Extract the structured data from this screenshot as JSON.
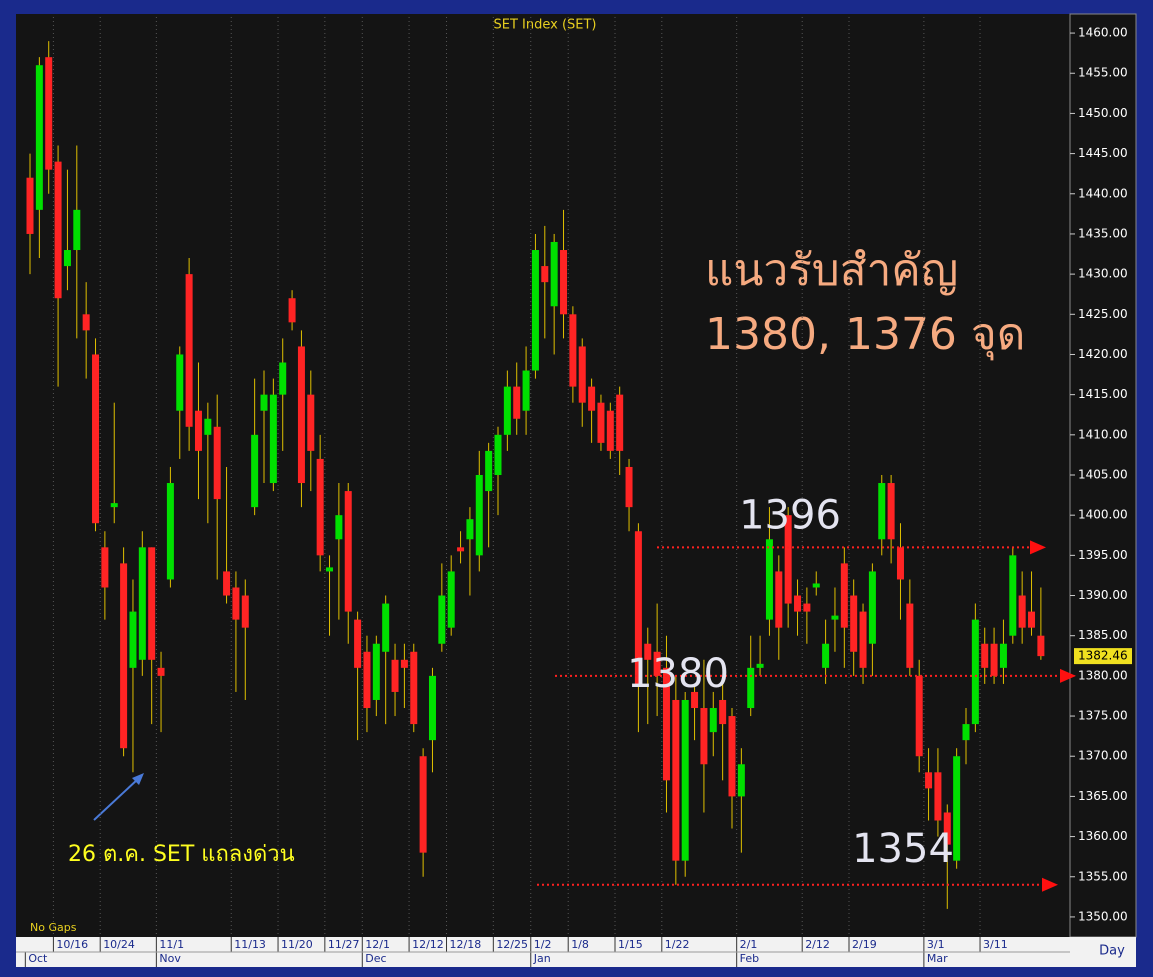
{
  "chart_data": {
    "type": "candlestick",
    "title": "SET Index (SET)",
    "open": [
      1442,
      1438,
      1457,
      1444,
      1431,
      1433,
      1425,
      1420,
      1396,
      1401,
      1394,
      1381,
      1382,
      1396,
      1381,
      1392,
      1413,
      1430,
      1413,
      1410,
      1411,
      1393,
      1391,
      1390,
      1401,
      1413,
      1404,
      1415,
      1427,
      1421,
      1415,
      1407,
      1393,
      1397,
      1403,
      1387,
      1383,
      1377,
      1383,
      1382,
      1382,
      1383,
      1370,
      1372,
      1384,
      1386,
      1396,
      1397,
      1395,
      1403,
      1405,
      1410,
      1416,
      1413,
      1418,
      1431,
      1426,
      1433,
      1425,
      1421,
      1416,
      1414,
      1413,
      1415,
      1406,
      1398,
      1384,
      1383,
      1381,
      1377,
      1357,
      1378,
      1376,
      1373,
      1377,
      1375,
      1365,
      1376,
      1381,
      1387,
      1393,
      1400,
      1390,
      1389,
      1391,
      1381,
      1387,
      1394,
      1390,
      1388,
      1384,
      1397,
      1404,
      1396,
      1389,
      1380,
      1368,
      1368,
      1363,
      1357,
      1372,
      1374,
      1384,
      1384,
      1381,
      1385,
      1390,
      1388,
      1385
    ],
    "high": [
      1445,
      1457,
      1459,
      1446,
      1443,
      1446,
      1429,
      1422,
      1398,
      1414,
      1396,
      1392,
      1398,
      1396,
      1383,
      1406,
      1421,
      1432,
      1419,
      1414,
      1415,
      1406,
      1393,
      1392,
      1417,
      1418,
      1417,
      1422,
      1428,
      1423,
      1418,
      1410,
      1395,
      1404,
      1404,
      1388,
      1385,
      1385,
      1390,
      1384,
      1384,
      1384,
      1371,
      1381,
      1394,
      1395,
      1398,
      1401,
      1408,
      1409,
      1411,
      1418,
      1419,
      1421,
      1435,
      1436,
      1435,
      1438,
      1426,
      1422,
      1417,
      1415,
      1414,
      1416,
      1407,
      1399,
      1386,
      1389,
      1385,
      1380,
      1378,
      1379,
      1382,
      1378,
      1379,
      1376,
      1371,
      1385,
      1385,
      1401,
      1395,
      1401,
      1392,
      1391,
      1393,
      1387,
      1391,
      1396,
      1392,
      1389,
      1394,
      1405,
      1405,
      1399,
      1392,
      1382,
      1371,
      1371,
      1364,
      1371,
      1376,
      1389,
      1386,
      1386,
      1387,
      1396,
      1393,
      1393,
      1391
    ],
    "low": [
      1430,
      1432,
      1440,
      1416,
      1428,
      1422,
      1417,
      1398,
      1387,
      1399,
      1370,
      1368,
      1380,
      1374,
      1373,
      1391,
      1407,
      1408,
      1402,
      1399,
      1392,
      1389,
      1378,
      1377,
      1400,
      1404,
      1403,
      1408,
      1423,
      1401,
      1403,
      1393,
      1385,
      1387,
      1384,
      1372,
      1373,
      1375,
      1374,
      1375,
      1376,
      1373,
      1355,
      1368,
      1383,
      1385,
      1394,
      1390,
      1393,
      1396,
      1400,
      1408,
      1410,
      1410,
      1417,
      1422,
      1420,
      1422,
      1414,
      1411,
      1409,
      1408,
      1407,
      1405,
      1398,
      1373,
      1374,
      1375,
      1363,
      1354,
      1355,
      1372,
      1363,
      1370,
      1367,
      1361,
      1358,
      1375,
      1380,
      1385,
      1382,
      1386,
      1385,
      1384,
      1390,
      1379,
      1383,
      1381,
      1380,
      1379,
      1380,
      1395,
      1394,
      1387,
      1380,
      1368,
      1362,
      1360,
      1351,
      1356,
      1369,
      1373,
      1379,
      1379,
      1379,
      1384,
      1384,
      1385,
      1382
    ],
    "close": [
      1435,
      1456,
      1443,
      1427,
      1433,
      1438,
      1423,
      1399,
      1391,
      1401.5,
      1371,
      1388,
      1396,
      1382,
      1380,
      1404,
      1420,
      1411,
      1408,
      1412,
      1402,
      1390,
      1387,
      1386,
      1410,
      1415,
      1415,
      1419,
      1424,
      1404,
      1408,
      1395,
      1393.5,
      1400,
      1388,
      1381,
      1376,
      1384,
      1389,
      1378,
      1381,
      1374,
      1358,
      1380,
      1390,
      1393,
      1395.5,
      1399.5,
      1405,
      1408,
      1410,
      1416,
      1412,
      1418,
      1433,
      1429,
      1434,
      1425,
      1416,
      1414,
      1413,
      1409,
      1408,
      1408,
      1401,
      1379,
      1382,
      1380,
      1367,
      1357,
      1377,
      1376,
      1369,
      1376,
      1374,
      1365,
      1369,
      1381,
      1381.5,
      1397,
      1386,
      1389,
      1388,
      1388,
      1391.5,
      1384,
      1387.5,
      1386,
      1383,
      1381,
      1393,
      1404,
      1397,
      1392,
      1381,
      1370,
      1366,
      1362,
      1359,
      1370,
      1374,
      1387,
      1381,
      1380,
      1384,
      1395,
      1386,
      1386,
      1382.46
    ],
    "categories": [
      null,
      null,
      null,
      "10/16",
      null,
      null,
      null,
      null,
      "10/24",
      null,
      null,
      null,
      null,
      null,
      "11/1",
      null,
      null,
      null,
      null,
      null,
      null,
      null,
      "11/13",
      null,
      null,
      null,
      null,
      "11/20",
      null,
      null,
      null,
      null,
      "11/27",
      null,
      null,
      null,
      "12/1",
      null,
      null,
      null,
      null,
      "12/12",
      null,
      null,
      null,
      "12/18",
      null,
      null,
      null,
      null,
      "12/25",
      null,
      null,
      null,
      "1/2",
      null,
      null,
      null,
      "1/8",
      null,
      null,
      null,
      null,
      "1/15",
      null,
      null,
      null,
      null,
      "1/22",
      null,
      null,
      null,
      null,
      null,
      null,
      null,
      "2/1",
      null,
      null,
      null,
      null,
      null,
      null,
      "2/12",
      null,
      null,
      null,
      null,
      "2/19",
      null,
      null,
      null,
      null,
      null,
      null,
      null,
      "3/1",
      null,
      null,
      null,
      null,
      null,
      "3/11",
      null,
      null,
      null,
      null,
      null,
      null
    ],
    "months": [
      "Oct",
      null,
      null,
      null,
      null,
      null,
      null,
      null,
      null,
      null,
      null,
      null,
      null,
      null,
      "Nov",
      null,
      null,
      null,
      null,
      null,
      null,
      null,
      null,
      null,
      null,
      null,
      null,
      null,
      null,
      null,
      null,
      null,
      null,
      null,
      null,
      null,
      "Dec",
      null,
      null,
      null,
      null,
      null,
      null,
      null,
      null,
      null,
      null,
      null,
      null,
      null,
      null,
      null,
      null,
      null,
      "Jan",
      null,
      null,
      null,
      null,
      null,
      null,
      null,
      null,
      null,
      null,
      null,
      null,
      null,
      null,
      null,
      null,
      null,
      null,
      null,
      null,
      null,
      "Feb",
      null,
      null,
      null,
      null,
      null,
      null,
      null,
      null,
      null,
      null,
      null,
      null,
      null,
      null,
      null,
      null,
      null,
      null,
      null,
      "Mar",
      null,
      null,
      null,
      null,
      null,
      null,
      null,
      null,
      null,
      null,
      null,
      null
    ],
    "ylim": [
      1348,
      1462
    ],
    "yticks": [
      {
        "value": 1350,
        "label": "1350.00"
      },
      {
        "value": 1355,
        "label": "1355.00"
      },
      {
        "value": 1360,
        "label": "1360.00"
      },
      {
        "value": 1365,
        "label": "1365.00"
      },
      {
        "value": 1370,
        "label": "1370.00"
      },
      {
        "value": 1375,
        "label": "1375.00"
      },
      {
        "value": 1380,
        "label": "1380.00"
      },
      {
        "value": 1385,
        "label": "1385.00"
      },
      {
        "value": 1390,
        "label": "1390.00"
      },
      {
        "value": 1395,
        "label": "1395.00"
      },
      {
        "value": 1400,
        "label": "1400.00"
      },
      {
        "value": 1405,
        "label": "1405.00"
      },
      {
        "value": 1410,
        "label": "1410.00"
      },
      {
        "value": 1415,
        "label": "1415.00"
      },
      {
        "value": 1420,
        "label": "1420.00"
      },
      {
        "value": 1425,
        "label": "1425.00"
      },
      {
        "value": 1430,
        "label": "1430.00"
      },
      {
        "value": 1435,
        "label": "1435.00"
      },
      {
        "value": 1440,
        "label": "1440.00"
      },
      {
        "value": 1445,
        "label": "1445.00"
      },
      {
        "value": 1450,
        "label": "1450.00"
      },
      {
        "value": 1455,
        "label": "1455.00"
      },
      {
        "value": 1460,
        "label": "1460.00"
      }
    ],
    "last_price_label": "1382.46",
    "levels": [
      {
        "value": 1396,
        "label": "1396"
      },
      {
        "value": 1380,
        "label": "1380"
      },
      {
        "value": 1354,
        "label": "1354"
      }
    ],
    "up_color": "#00e000",
    "down_color": "#ff2424",
    "wick_color": "#e0c000",
    "support_title": "แนวรับสำคัญ",
    "support_values": "1380, 1376 จุด",
    "annotation": "26 ต.ค.  SET แถลงด่วน",
    "gaps_label": "No Gaps",
    "period_label": "Day"
  }
}
